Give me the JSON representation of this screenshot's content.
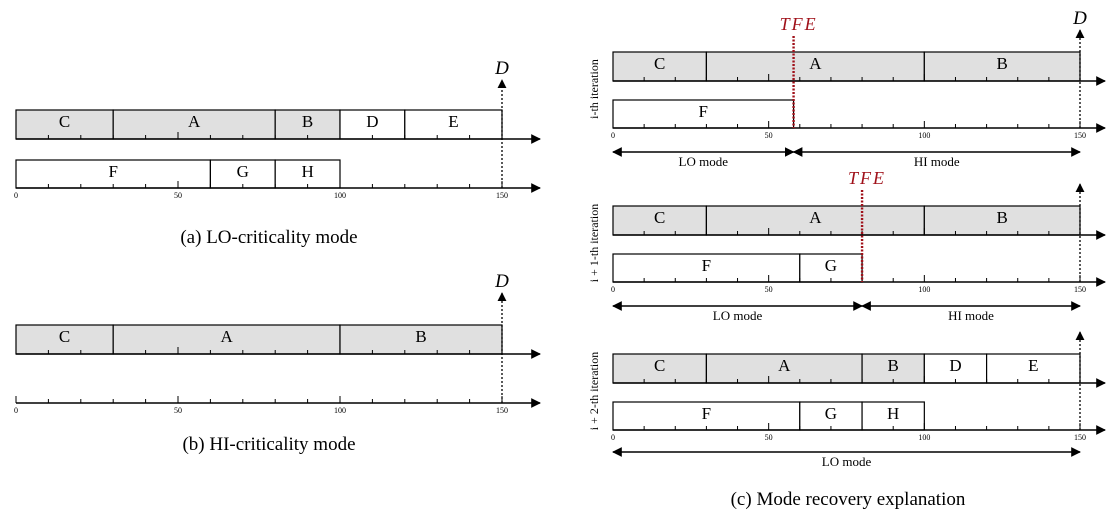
{
  "axis_ticks": [
    "0",
    "50",
    "100",
    "150"
  ],
  "deadline_label": "D",
  "tfe_label": "TFE",
  "mode_labels": {
    "lo": "LO mode",
    "hi": "HI mode"
  },
  "panel_a": {
    "caption": "(a) LO-criticality mode",
    "row1": [
      {
        "label": "C",
        "start": 0,
        "end": 30,
        "criticality": "HI"
      },
      {
        "label": "A",
        "start": 30,
        "end": 80,
        "criticality": "HI"
      },
      {
        "label": "B",
        "start": 80,
        "end": 100,
        "criticality": "HI"
      },
      {
        "label": "D",
        "start": 100,
        "end": 120,
        "criticality": "LO"
      },
      {
        "label": "E",
        "start": 120,
        "end": 150,
        "criticality": "LO"
      }
    ],
    "row2": [
      {
        "label": "F",
        "start": 0,
        "end": 60,
        "criticality": "LO"
      },
      {
        "label": "G",
        "start": 60,
        "end": 80,
        "criticality": "LO"
      },
      {
        "label": "H",
        "start": 80,
        "end": 100,
        "criticality": "LO"
      }
    ]
  },
  "panel_b": {
    "caption": "(b) HI-criticality mode",
    "row1": [
      {
        "label": "C",
        "start": 0,
        "end": 30,
        "criticality": "HI"
      },
      {
        "label": "A",
        "start": 30,
        "end": 100,
        "criticality": "HI"
      },
      {
        "label": "B",
        "start": 100,
        "end": 150,
        "criticality": "HI"
      }
    ],
    "row2": []
  },
  "panel_c": {
    "caption": "(c) Mode recovery explanation",
    "iterations": [
      {
        "label": "i-th iteration",
        "tfe_at": 58,
        "row1": [
          {
            "label": "C",
            "start": 0,
            "end": 30,
            "criticality": "HI"
          },
          {
            "label": "A",
            "start": 30,
            "end": 100,
            "criticality": "HI"
          },
          {
            "label": "B",
            "start": 100,
            "end": 150,
            "criticality": "HI"
          }
        ],
        "row2": [
          {
            "label": "F",
            "start": 0,
            "end": 58,
            "criticality": "LO"
          }
        ]
      },
      {
        "label": "i + 1-th iteration",
        "tfe_at": 80,
        "row1": [
          {
            "label": "C",
            "start": 0,
            "end": 30,
            "criticality": "HI"
          },
          {
            "label": "A",
            "start": 30,
            "end": 100,
            "criticality": "HI"
          },
          {
            "label": "B",
            "start": 100,
            "end": 150,
            "criticality": "HI"
          }
        ],
        "row2": [
          {
            "label": "F",
            "start": 0,
            "end": 60,
            "criticality": "LO"
          },
          {
            "label": "G",
            "start": 60,
            "end": 80,
            "criticality": "LO"
          }
        ]
      },
      {
        "label": "i + 2-th iteration",
        "tfe_at": null,
        "row1": [
          {
            "label": "C",
            "start": 0,
            "end": 30,
            "criticality": "HI"
          },
          {
            "label": "A",
            "start": 30,
            "end": 80,
            "criticality": "HI"
          },
          {
            "label": "B",
            "start": 80,
            "end": 100,
            "criticality": "HI"
          },
          {
            "label": "D",
            "start": 100,
            "end": 120,
            "criticality": "LO"
          },
          {
            "label": "E",
            "start": 120,
            "end": 150,
            "criticality": "LO"
          }
        ],
        "row2": [
          {
            "label": "F",
            "start": 0,
            "end": 60,
            "criticality": "LO"
          },
          {
            "label": "G",
            "start": 60,
            "end": 80,
            "criticality": "LO"
          },
          {
            "label": "H",
            "start": 80,
            "end": 100,
            "criticality": "LO"
          }
        ]
      }
    ]
  }
}
